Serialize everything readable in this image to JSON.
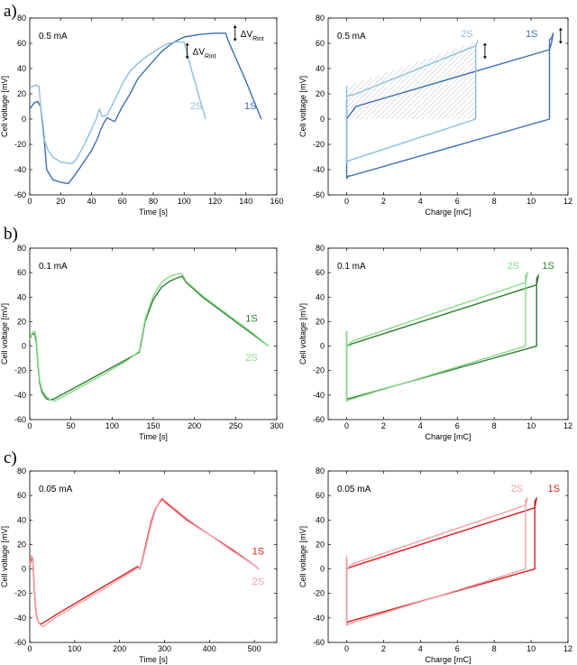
{
  "figure": {
    "row_labels": [
      "a)",
      "b)",
      "c)"
    ]
  },
  "chart_data": [
    {
      "type": "line",
      "row": 0,
      "col": 0,
      "title": "",
      "inset": "0.5 mA",
      "xlabel": "Time [s]",
      "ylabel": "Cell voltage [mV]",
      "xlim": [
        0,
        160
      ],
      "ylim": [
        -60,
        80
      ],
      "xticks": [
        0,
        20,
        40,
        60,
        80,
        100,
        120,
        140,
        160
      ],
      "yticks": [
        -60,
        -40,
        -20,
        0,
        20,
        40,
        60,
        80
      ],
      "annotations": [
        {
          "text": "ΔV",
          "sub": "Rint",
          "x": 102,
          "y": 54
        },
        {
          "text": "ΔV",
          "sub": "Rint",
          "x": 133,
          "y": 68
        }
      ],
      "series": [
        {
          "name": "1S",
          "color": "#3D6DB0",
          "label_pos": [
            139,
            8
          ],
          "x": [
            0,
            3,
            5,
            7,
            9,
            11,
            15,
            20,
            25,
            30,
            35,
            40,
            44,
            46,
            48,
            50,
            55,
            60,
            65,
            70,
            75,
            80,
            85,
            90,
            95,
            100,
            110,
            120,
            127,
            128,
            130,
            135,
            140,
            145,
            150
          ],
          "y": [
            8,
            13,
            14,
            10,
            -10,
            -40,
            -48,
            -50,
            -51,
            -43,
            -34,
            -25,
            -15,
            -8,
            -3,
            1,
            -2,
            10,
            20,
            32,
            39,
            46,
            53,
            58,
            62,
            65,
            67,
            68,
            68,
            64,
            58,
            44,
            30,
            15,
            0
          ]
        },
        {
          "name": "2S",
          "color": "#8EBDE0",
          "label_pos": [
            104,
            8
          ],
          "x": [
            0,
            2,
            4,
            6,
            7,
            9,
            12,
            15,
            20,
            25,
            28,
            30,
            35,
            40,
            43,
            45,
            47,
            50,
            55,
            60,
            65,
            70,
            75,
            80,
            85,
            90,
            95,
            100,
            102,
            105,
            108,
            111,
            114
          ],
          "y": [
            25,
            26,
            27,
            26,
            10,
            -15,
            -25,
            -30,
            -34,
            -35,
            -35,
            -32,
            -21,
            -8,
            0,
            8,
            2,
            3,
            15,
            28,
            38,
            44,
            49,
            53,
            57,
            60,
            61,
            61,
            52,
            38,
            25,
            12,
            0
          ]
        }
      ]
    },
    {
      "type": "line",
      "row": 0,
      "col": 1,
      "title": "",
      "inset": "0.5 mA",
      "xlabel": "Charge [mC]",
      "ylabel": "Cell voltage [mV]",
      "xlim": [
        -1,
        12
      ],
      "ylim": [
        -60,
        80
      ],
      "xticks": [
        0,
        2,
        4,
        6,
        8,
        10,
        12
      ],
      "yticks": [
        -60,
        -40,
        -20,
        0,
        20,
        40,
        60,
        80
      ],
      "annotations": [
        {
          "text": "hatched",
          "sub": "",
          "x": 0,
          "y": 0
        }
      ],
      "series": [
        {
          "name": "1S",
          "color": "#3D6DB0",
          "label_pos": [
            9.7,
            65
          ],
          "x": [
            0,
            0,
            0.1,
            0.2,
            11,
            11,
            11.1,
            11.2,
            11.1,
            11,
            0.5,
            0
          ],
          "y": [
            15,
            -47,
            -45,
            -45,
            0,
            63,
            64,
            68,
            60,
            55,
            10,
            0
          ]
        },
        {
          "name": "2S",
          "color": "#8EBDE0",
          "label_pos": [
            6.2,
            65
          ],
          "x": [
            0,
            0,
            0.1,
            7,
            7,
            7,
            7.1,
            7,
            0.5,
            0
          ],
          "y": [
            26,
            -35,
            -33,
            0,
            50,
            58,
            62,
            58,
            20,
            18
          ]
        }
      ]
    },
    {
      "type": "line",
      "row": 1,
      "col": 0,
      "title": "",
      "inset": "0.1 mA",
      "xlabel": "Time [s]",
      "ylabel": "Cell voltage [mV]",
      "xlim": [
        0,
        300
      ],
      "ylim": [
        -60,
        80
      ],
      "xticks": [
        0,
        50,
        100,
        150,
        200,
        250,
        300
      ],
      "yticks": [
        -60,
        -40,
        -20,
        0,
        20,
        40,
        60,
        80
      ],
      "series": [
        {
          "name": "1S",
          "color": "#2E7D32",
          "label_pos": [
            262,
            20
          ],
          "x": [
            0,
            3,
            6,
            8,
            10,
            12,
            15,
            20,
            25,
            30,
            60,
            90,
            120,
            133,
            135,
            140,
            150,
            160,
            170,
            180,
            185,
            190,
            210,
            230,
            250,
            270,
            290
          ],
          "y": [
            5,
            10,
            10,
            3,
            -15,
            -30,
            -38,
            -43,
            -44,
            -43,
            -32,
            -21,
            -10,
            -5,
            1,
            20,
            38,
            48,
            53,
            56,
            57,
            52,
            40,
            30,
            20,
            10,
            0
          ]
        },
        {
          "name": "2S",
          "color": "#8BD98C",
          "label_pos": [
            262,
            -12
          ],
          "x": [
            0,
            3,
            6,
            8,
            10,
            12,
            15,
            20,
            25,
            30,
            60,
            90,
            120,
            133,
            135,
            140,
            150,
            160,
            170,
            180,
            185,
            190,
            210,
            230,
            250,
            270,
            290
          ],
          "y": [
            5,
            11,
            12,
            6,
            -12,
            -28,
            -36,
            -41,
            -44,
            -45,
            -34,
            -23,
            -11,
            -4,
            3,
            22,
            41,
            52,
            57,
            59,
            59,
            53,
            41,
            31,
            21,
            11,
            0
          ]
        }
      ]
    },
    {
      "type": "line",
      "row": 1,
      "col": 1,
      "title": "",
      "inset": "0.1 mA",
      "xlabel": "Charge [mC]",
      "ylabel": "Cell voltage [mV]",
      "xlim": [
        -1,
        12
      ],
      "ylim": [
        -60,
        80
      ],
      "xticks": [
        0,
        2,
        4,
        6,
        8,
        10,
        12
      ],
      "yticks": [
        -60,
        -40,
        -20,
        0,
        20,
        40,
        60,
        80
      ],
      "series": [
        {
          "name": "1S",
          "color": "#2E7D32",
          "label_pos": [
            10.6,
            63
          ],
          "x": [
            0,
            0,
            0.1,
            10.3,
            10.3,
            10.4,
            10.3,
            0.3,
            0
          ],
          "y": [
            12,
            -43,
            -43,
            0,
            55,
            58,
            50,
            2,
            0
          ]
        },
        {
          "name": "2S",
          "color": "#8BD98C",
          "label_pos": [
            8.7,
            63
          ],
          "x": [
            0,
            0,
            0.1,
            9.7,
            9.7,
            9.8,
            9.7,
            0.3,
            0
          ],
          "y": [
            12,
            -45,
            -44,
            0,
            57,
            60,
            52,
            4,
            0
          ]
        }
      ]
    },
    {
      "type": "line",
      "row": 2,
      "col": 0,
      "title": "",
      "inset": "0.05 mA",
      "xlabel": "Time [s]",
      "ylabel": "Cell voltage [mV]",
      "xlim": [
        0,
        550
      ],
      "ylim": [
        -60,
        80
      ],
      "xticks": [
        0,
        100,
        200,
        300,
        400,
        500
      ],
      "yticks": [
        -60,
        -40,
        -20,
        0,
        20,
        40,
        60,
        80
      ],
      "series": [
        {
          "name": "1S",
          "color": "#D32020",
          "label_pos": [
            495,
            12
          ],
          "x": [
            0,
            4,
            7,
            10,
            13,
            16,
            20,
            25,
            30,
            60,
            120,
            180,
            240,
            245,
            250,
            260,
            270,
            280,
            290,
            295,
            300,
            350,
            400,
            450,
            500,
            510
          ],
          "y": [
            2,
            9,
            6,
            -15,
            -32,
            -40,
            -44,
            -45,
            -44,
            -37,
            -24,
            -11,
            2,
            0,
            6,
            22,
            38,
            49,
            55,
            57,
            55,
            40,
            28,
            16,
            3,
            0
          ]
        },
        {
          "name": "2S",
          "color": "#F4A0A8",
          "label_pos": [
            495,
            -13
          ],
          "x": [
            0,
            4,
            7,
            10,
            13,
            16,
            20,
            25,
            30,
            60,
            120,
            180,
            240,
            245,
            250,
            260,
            270,
            280,
            290,
            295,
            300,
            350,
            400,
            450,
            500,
            510
          ],
          "y": [
            3,
            11,
            8,
            -12,
            -30,
            -39,
            -44,
            -46,
            -47,
            -39,
            -26,
            -13,
            1,
            0,
            5,
            20,
            36,
            48,
            56,
            58,
            56,
            41,
            28,
            15,
            3,
            0
          ]
        }
      ]
    },
    {
      "type": "line",
      "row": 2,
      "col": 1,
      "title": "",
      "inset": "0.05 mA",
      "xlabel": "Charge [mC]",
      "ylabel": "Cell voltage [mV]",
      "xlim": [
        -1,
        12
      ],
      "ylim": [
        -60,
        80
      ],
      "xticks": [
        0,
        2,
        4,
        6,
        8,
        10,
        12
      ],
      "yticks": [
        -60,
        -40,
        -20,
        0,
        20,
        40,
        60,
        80
      ],
      "series": [
        {
          "name": "1S",
          "color": "#D32020",
          "label_pos": [
            10.9,
            63
          ],
          "x": [
            0,
            0,
            0.1,
            10.2,
            10.2,
            10.3,
            10.2,
            0.3,
            0
          ],
          "y": [
            8,
            -44,
            -43,
            0,
            55,
            58,
            50,
            2,
            0
          ]
        },
        {
          "name": "2S",
          "color": "#F4A0A8",
          "label_pos": [
            8.9,
            63
          ],
          "x": [
            0,
            0,
            0.1,
            9.7,
            9.7,
            9.8,
            9.7,
            0.3,
            0
          ],
          "y": [
            11,
            -46,
            -45,
            0,
            56,
            58,
            52,
            4,
            0
          ]
        }
      ]
    }
  ]
}
